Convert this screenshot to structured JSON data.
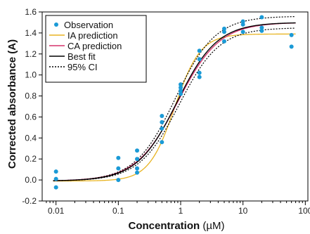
{
  "chart_data": {
    "type": "scatter",
    "xscale": "log",
    "xlim": [
      0.006,
      110
    ],
    "ylim": [
      -0.2,
      1.6
    ],
    "xticks": [
      0.01,
      0.1,
      1,
      10,
      100
    ],
    "xtick_labels": [
      "0.01",
      "0.1",
      "1",
      "10",
      "100"
    ],
    "yticks": [
      -0.2,
      0,
      0.2,
      0.4,
      0.6,
      0.8,
      1.0,
      1.2,
      1.4,
      1.6
    ],
    "ytick_labels": [
      "-0.2",
      "0.0",
      "0.2",
      "0.4",
      "0.6",
      "0.8",
      "1.0",
      "1.2",
      "1.4",
      "1.6"
    ],
    "xlabel": "Concentration",
    "xlabel_unit": "(µM)",
    "ylabel": "Corrected absorbance (A)",
    "grid": false,
    "legend_position": "top-left",
    "colors": {
      "observation": "#1b9ad6",
      "ia": "#e8b422",
      "ca": "#d6336c",
      "best_fit": "#000000",
      "ci": "#000000"
    },
    "series": [
      {
        "name": "Observation",
        "kind": "points",
        "points": [
          [
            0.01,
            0.08
          ],
          [
            0.01,
            0.01
          ],
          [
            0.01,
            -0.07
          ],
          [
            0.1,
            0.21
          ],
          [
            0.1,
            0.11
          ],
          [
            0.1,
            0.0
          ],
          [
            0.2,
            0.28
          ],
          [
            0.2,
            0.2
          ],
          [
            0.2,
            0.11
          ],
          [
            0.2,
            0.07
          ],
          [
            0.5,
            0.61
          ],
          [
            0.5,
            0.55
          ],
          [
            0.5,
            0.49
          ],
          [
            0.5,
            0.36
          ],
          [
            1,
            0.91
          ],
          [
            1,
            0.88
          ],
          [
            1,
            0.85
          ],
          [
            1,
            0.82
          ],
          [
            2,
            1.23
          ],
          [
            2,
            1.15
          ],
          [
            2,
            1.02
          ],
          [
            2,
            0.98
          ],
          [
            5,
            1.44
          ],
          [
            5,
            1.41
          ],
          [
            5,
            1.32
          ],
          [
            10,
            1.51
          ],
          [
            10,
            1.48
          ],
          [
            10,
            1.41
          ],
          [
            20,
            1.55
          ],
          [
            20,
            1.45
          ],
          [
            20,
            1.42
          ],
          [
            60,
            1.38
          ],
          [
            60,
            1.27
          ]
        ]
      },
      {
        "name": "IA prediction",
        "kind": "logistic",
        "bottom": -0.01,
        "top": 1.39,
        "ec50": 0.8,
        "hill": 2.1
      },
      {
        "name": "CA prediction",
        "kind": "logistic",
        "bottom": -0.01,
        "top": 1.5,
        "ec50": 0.9,
        "hill": 1.3
      },
      {
        "name": "Best fit",
        "kind": "logistic",
        "bottom": -0.01,
        "top": 1.5,
        "ec50": 0.88,
        "hill": 1.35
      },
      {
        "name": "95% CI",
        "kind": "band",
        "bottom": -0.01,
        "top_upper": 1.56,
        "ec50_upper": 0.82,
        "top_lower": 1.45,
        "ec50_lower": 0.95,
        "hill": 1.35
      }
    ]
  }
}
